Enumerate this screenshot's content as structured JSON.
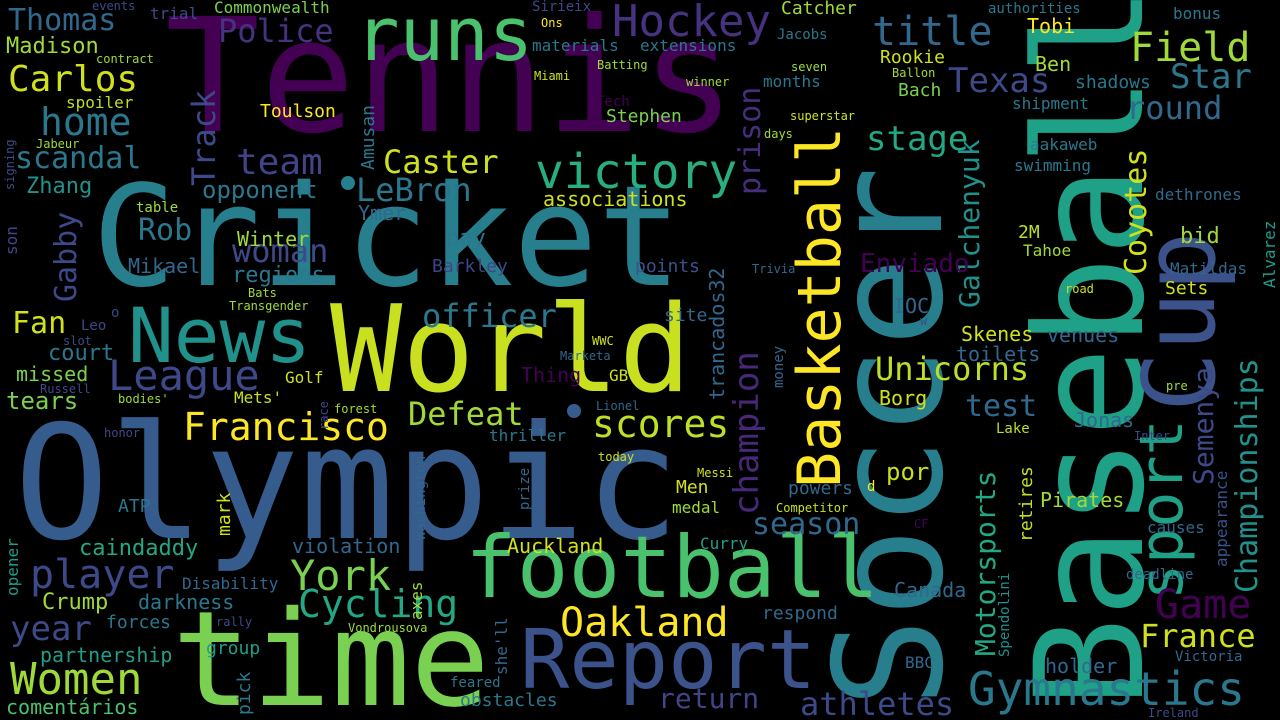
{
  "colors": {
    "background": "#000000",
    "palette": [
      "#440154",
      "#46327e",
      "#365c8d",
      "#277f8e",
      "#1fa187",
      "#4ac16d",
      "#a0da39",
      "#fde725"
    ]
  },
  "words": [
    {
      "text": "Tennis",
      "color": "#440154"
    },
    {
      "text": "Cricket",
      "color": "#277f8e"
    },
    {
      "text": "Olympic",
      "color": "#365c8d"
    },
    {
      "text": "Soccer",
      "color": "#277f8e"
    },
    {
      "text": "World",
      "color": "#c8e020"
    },
    {
      "text": "time",
      "color": "#7ad151"
    },
    {
      "text": "Baseball",
      "color": "#1fa187"
    },
    {
      "text": "football",
      "color": "#4ac16d"
    },
    {
      "text": "Report",
      "color": "#3b528b"
    },
    {
      "text": "News",
      "color": "#21918c"
    },
    {
      "text": "runs",
      "color": "#4ac16d"
    },
    {
      "text": "Hockey",
      "color": "#46327e"
    },
    {
      "text": "Cup",
      "color": "#3b528b"
    },
    {
      "text": "Basketball",
      "color": "#fde725"
    },
    {
      "text": "sport",
      "color": "#1fa187"
    },
    {
      "text": "victory",
      "color": "#29af7f"
    },
    {
      "text": "Gymnastics",
      "color": "#2a788e"
    },
    {
      "text": "Women",
      "color": "#a0da39"
    },
    {
      "text": "player",
      "color": "#3e4989"
    },
    {
      "text": "Cycling",
      "color": "#22a884"
    },
    {
      "text": "York",
      "color": "#7ad151"
    },
    {
      "text": "Oakland",
      "color": "#fde725"
    },
    {
      "text": "Game",
      "color": "#440154"
    },
    {
      "text": "France",
      "color": "#d0e11c"
    },
    {
      "text": "League",
      "color": "#3e4989"
    },
    {
      "text": "Francisco",
      "color": "#fde725"
    },
    {
      "text": "scores",
      "color": "#bddf26"
    },
    {
      "text": "Defeat",
      "color": "#a0da39"
    },
    {
      "text": "Field",
      "color": "#a0da39"
    },
    {
      "text": "Star",
      "color": "#2a788e"
    },
    {
      "text": "title",
      "color": "#31688e"
    },
    {
      "text": "Texas",
      "color": "#3e4989"
    },
    {
      "text": "round",
      "color": "#31688e"
    },
    {
      "text": "Carlos",
      "color": "#d0e11c"
    },
    {
      "text": "home",
      "color": "#2a788e"
    },
    {
      "text": "Track",
      "color": "#3e4989"
    },
    {
      "text": "team",
      "color": "#414487"
    },
    {
      "text": "scandal",
      "color": "#2a788e"
    },
    {
      "text": "Thomas",
      "color": "#31688e"
    },
    {
      "text": "Madison",
      "color": "#a0da39"
    },
    {
      "text": "Police",
      "color": "#46327e"
    },
    {
      "text": "Caster",
      "color": "#d0e11c"
    },
    {
      "text": "LeBron",
      "color": "#2a788e"
    },
    {
      "text": "prison",
      "color": "#472d7b"
    },
    {
      "text": "stage",
      "color": "#22a884"
    },
    {
      "text": "Coyotes",
      "color": "#d0e11c"
    },
    {
      "text": "Championships",
      "color": "#21918c"
    },
    {
      "text": "Semenya",
      "color": "#3e4989"
    },
    {
      "text": "Motorsports",
      "color": "#22a884"
    },
    {
      "text": "champion",
      "color": "#482878"
    },
    {
      "text": "Unicorns",
      "color": "#bddf26"
    },
    {
      "text": "Galchenyuk",
      "color": "#21918c"
    },
    {
      "text": "test",
      "color": "#31688e"
    },
    {
      "text": "season",
      "color": "#31688e"
    },
    {
      "text": "officer",
      "color": "#2a788e"
    },
    {
      "text": "woman",
      "color": "#3e4989"
    },
    {
      "text": "Gabby",
      "color": "#3e4989"
    },
    {
      "text": "Rob",
      "color": "#2a788e"
    },
    {
      "text": "Zhang",
      "color": "#21918c"
    },
    {
      "text": "opponent",
      "color": "#2a788e"
    },
    {
      "text": "Fan",
      "color": "#d0e11c"
    },
    {
      "text": "court",
      "color": "#2a788e"
    },
    {
      "text": "year",
      "color": "#3e4989"
    },
    {
      "text": "tears",
      "color": "#7ad151"
    },
    {
      "text": "missed",
      "color": "#7ad151"
    },
    {
      "text": "Crump",
      "color": "#a0da39"
    },
    {
      "text": "darkness",
      "color": "#2a788e"
    },
    {
      "text": "caindaddy",
      "color": "#22a884"
    },
    {
      "text": "partnership",
      "color": "#1f9e89"
    },
    {
      "text": "comentários",
      "color": "#4ac16d"
    },
    {
      "text": "athletes",
      "color": "#3e4989"
    },
    {
      "text": "return",
      "color": "#414487"
    },
    {
      "text": "Auckland",
      "color": "#d0e11c"
    },
    {
      "text": "violation",
      "color": "#31688e"
    },
    {
      "text": "Enviado",
      "color": "#440154"
    },
    {
      "text": "associations",
      "color": "#d0e11c"
    },
    {
      "text": "Winter",
      "color": "#a0da39"
    },
    {
      "text": "regions",
      "color": "#2a788e"
    },
    {
      "text": "Mikael",
      "color": "#31688e"
    },
    {
      "text": "Ymer",
      "color": "#31688e"
    },
    {
      "text": "pay",
      "color": "#2a788e"
    },
    {
      "text": "Barkley",
      "color": "#414487"
    },
    {
      "text": "points",
      "color": "#3b528b"
    },
    {
      "text": "trancados32",
      "color": "#31688e"
    },
    {
      "text": "Skenes",
      "color": "#d0e11c"
    },
    {
      "text": "toilets",
      "color": "#31688e"
    },
    {
      "text": "venues",
      "color": "#31688e"
    },
    {
      "text": "Jonas",
      "color": "#31688e"
    },
    {
      "text": "Borg",
      "color": "#d0e11c"
    },
    {
      "text": "Pirates",
      "color": "#a0da39"
    },
    {
      "text": "causes",
      "color": "#31688e"
    },
    {
      "text": "por",
      "color": "#c8e020"
    },
    {
      "text": "Canada",
      "color": "#31688e"
    },
    {
      "text": "holder",
      "color": "#31688e"
    },
    {
      "text": "BBC",
      "color": "#31688e"
    },
    {
      "text": "Tobi",
      "color": "#fde725"
    },
    {
      "text": "Ben",
      "color": "#a0da39"
    },
    {
      "text": "shadows",
      "color": "#2a788e"
    },
    {
      "text": "shipment",
      "color": "#2a788e"
    },
    {
      "text": "aakaweb",
      "color": "#2a788e"
    },
    {
      "text": "swimming",
      "color": "#2a788e"
    },
    {
      "text": "dethrones",
      "color": "#31688e"
    },
    {
      "text": "bid",
      "color": "#a0da39"
    },
    {
      "text": "2M",
      "color": "#bddf26"
    },
    {
      "text": "Tahoe",
      "color": "#a0da39"
    },
    {
      "text": "Matildas",
      "color": "#31688e"
    },
    {
      "text": "Sets",
      "color": "#d0e11c"
    },
    {
      "text": "Alvarez",
      "color": "#1f9e89"
    },
    {
      "text": "road",
      "color": "#d0e11c"
    },
    {
      "text": "Rookie",
      "color": "#d0e11c"
    },
    {
      "text": "Bach",
      "color": "#7ad151"
    },
    {
      "text": "IOC",
      "color": "#31688e"
    },
    {
      "text": "Catcher",
      "color": "#a0da39"
    },
    {
      "text": "Jacobs",
      "color": "#2a788e"
    },
    {
      "text": "months",
      "color": "#2a788e"
    },
    {
      "text": "Toulson",
      "color": "#fde725"
    },
    {
      "text": "Stephen",
      "color": "#7ad151"
    },
    {
      "text": "materials",
      "color": "#2a788e"
    },
    {
      "text": "extensions",
      "color": "#2a788e"
    },
    {
      "text": "Commonwealth",
      "color": "#7ad151"
    },
    {
      "text": "authorities",
      "color": "#2a788e"
    },
    {
      "text": "bonus",
      "color": "#2a788e"
    },
    {
      "text": "Amusan",
      "color": "#2a788e"
    },
    {
      "text": "Curry",
      "color": "#1f9e89"
    },
    {
      "text": "medal",
      "color": "#a0da39"
    },
    {
      "text": "Men",
      "color": "#d0e11c"
    },
    {
      "text": "ATP",
      "color": "#2a788e"
    },
    {
      "text": "mark",
      "color": "#d0e11c"
    },
    {
      "text": "Mets'",
      "color": "#c8e020"
    },
    {
      "text": "Golf",
      "color": "#d0e11c"
    },
    {
      "text": "group",
      "color": "#1f9e89"
    },
    {
      "text": "forces",
      "color": "#2a788e"
    },
    {
      "text": "Disability",
      "color": "#31688e"
    },
    {
      "text": "powers",
      "color": "#31688e"
    },
    {
      "text": "respond",
      "color": "#31688e"
    },
    {
      "text": "retires",
      "color": "#bddf26"
    },
    {
      "text": "appearance",
      "color": "#3b528b"
    },
    {
      "text": "deadline",
      "color": "#31688e"
    },
    {
      "text": "Spendolini",
      "color": "#21918c"
    },
    {
      "text": "Victoria",
      "color": "#31688e"
    },
    {
      "text": "Lake",
      "color": "#bddf26"
    },
    {
      "text": "obstacles",
      "color": "#2a788e"
    },
    {
      "text": "pick",
      "color": "#2a788e"
    },
    {
      "text": "feared",
      "color": "#2a788e"
    },
    {
      "text": "she'll",
      "color": "#31688e"
    },
    {
      "text": "axes",
      "color": "#a0da39"
    },
    {
      "text": "Washington",
      "color": "#31688e"
    },
    {
      "text": "prize",
      "color": "#31688e"
    },
    {
      "text": "thriller",
      "color": "#2a788e"
    },
    {
      "text": "Lionel",
      "color": "#31688e"
    },
    {
      "text": "today",
      "color": "#d0e11c"
    },
    {
      "text": "Messi",
      "color": "#d0e11c"
    },
    {
      "text": "Competitor",
      "color": "#c8e020"
    },
    {
      "text": "site",
      "color": "#31688e"
    },
    {
      "text": "Thing",
      "color": "#440154"
    },
    {
      "text": "GB",
      "color": "#d0e11c"
    },
    {
      "text": "WWC",
      "color": "#d0e11c"
    },
    {
      "text": "Marketa",
      "color": "#31688e"
    },
    {
      "text": "money",
      "color": "#31688e"
    },
    {
      "text": "Trivia",
      "color": "#31688e"
    },
    {
      "text": "superstar",
      "color": "#d0e11c"
    },
    {
      "text": "days",
      "color": "#a0da39"
    },
    {
      "text": "seven",
      "color": "#a0da39"
    },
    {
      "text": "Ballon",
      "color": "#a0da39"
    },
    {
      "text": "winner",
      "color": "#a0da39"
    },
    {
      "text": "Batting",
      "color": "#a0da39"
    },
    {
      "text": "Miami",
      "color": "#d0e11c"
    },
    {
      "text": "Ons",
      "color": "#fde725"
    },
    {
      "text": "Sirieix",
      "color": "#3e4989"
    },
    {
      "text": "Tech",
      "color": "#440154"
    },
    {
      "text": "events",
      "color": "#3e4989"
    },
    {
      "text": "trial",
      "color": "#3e4989"
    },
    {
      "text": "contract",
      "color": "#a0da39"
    },
    {
      "text": "spoiler",
      "color": "#bddf26"
    },
    {
      "text": "Jabeur",
      "color": "#a0da39"
    },
    {
      "text": "signing",
      "color": "#3e4989"
    },
    {
      "text": "son",
      "color": "#3e4989"
    },
    {
      "text": "table",
      "color": "#a0da39"
    },
    {
      "text": "Bats",
      "color": "#a0da39"
    },
    {
      "text": "Transgender",
      "color": "#a0da39"
    },
    {
      "text": "Leo",
      "color": "#3e4989"
    },
    {
      "text": "slot",
      "color": "#3e4989"
    },
    {
      "text": "Russell",
      "color": "#3e4989"
    },
    {
      "text": "bodies'",
      "color": "#a0da39"
    },
    {
      "text": "honor",
      "color": "#3e4989"
    },
    {
      "text": "opener",
      "color": "#1f9e89"
    },
    {
      "text": "rally",
      "color": "#3e4989"
    },
    {
      "text": "forest",
      "color": "#a0da39"
    },
    {
      "text": "race",
      "color": "#3e4989"
    },
    {
      "text": "Vondrousova",
      "color": "#a0da39"
    },
    {
      "text": "CF",
      "color": "#440154"
    },
    {
      "text": "Inter",
      "color": "#3e4989"
    },
    {
      "text": "pre",
      "color": "#a0da39"
    },
    {
      "text": "Ireland",
      "color": "#3e4989"
    },
    {
      "text": "w",
      "color": "#3e4989"
    },
    {
      "text": "o",
      "color": "#3e4989"
    },
    {
      "text": "d",
      "color": "#fde725"
    }
  ]
}
